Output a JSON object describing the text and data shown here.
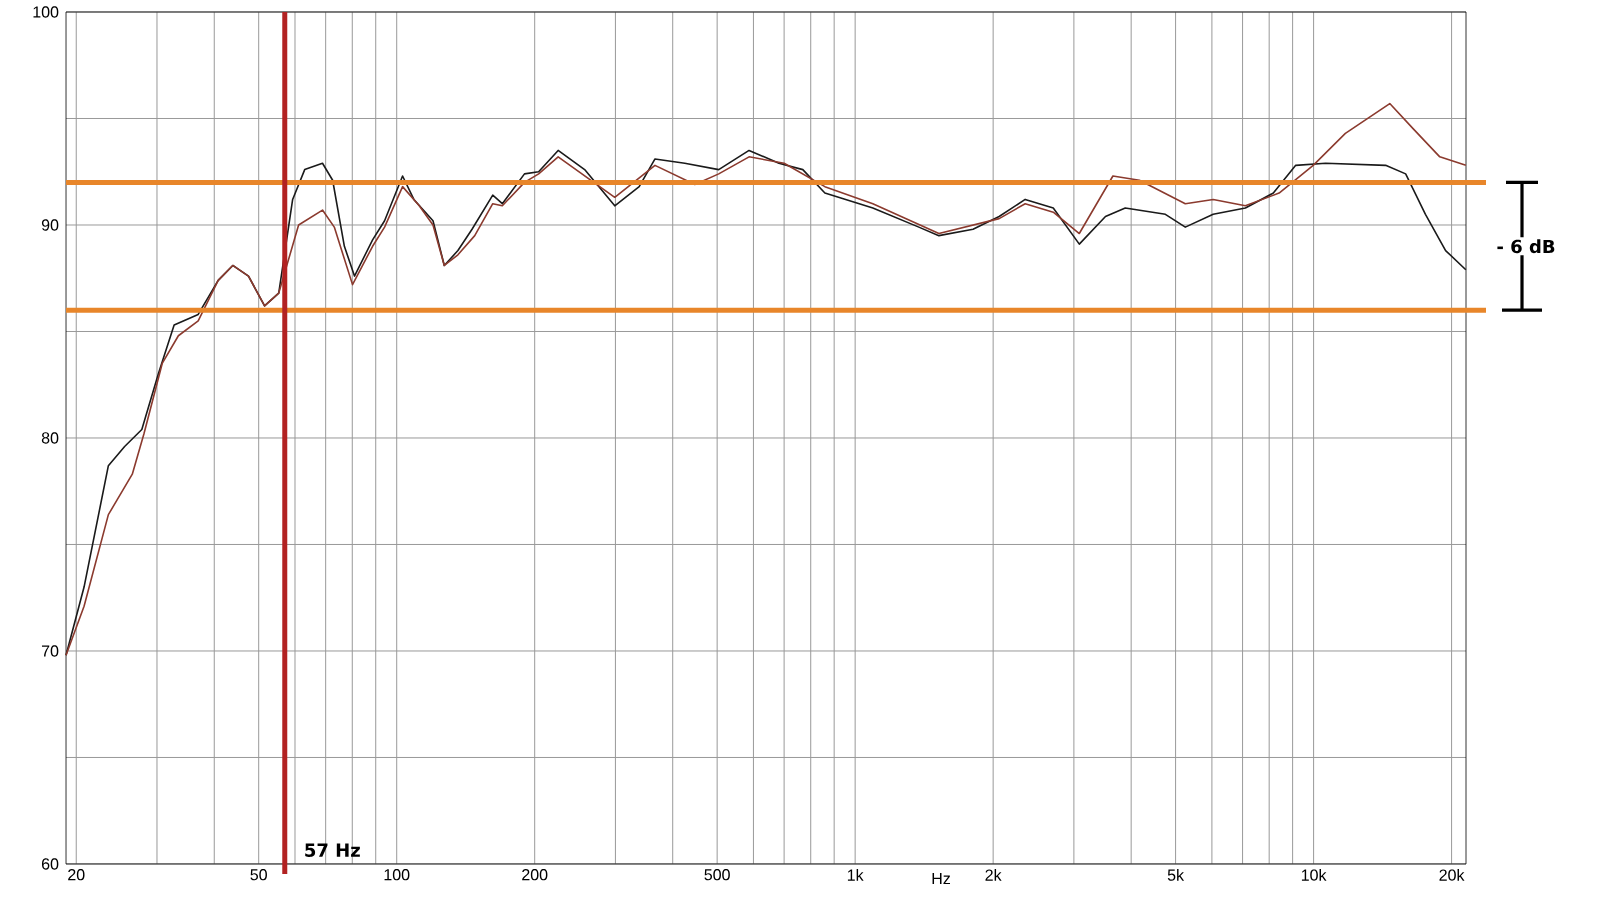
{
  "chart_data": {
    "type": "line",
    "log": "x",
    "grid": true,
    "xlabel": "Hz",
    "xlim": [
      19,
      21500
    ],
    "ylim": [
      60,
      100
    ],
    "xticks": [
      20,
      {
        "value": 30,
        "label": null
      },
      {
        "value": 40,
        "label": null
      },
      50,
      {
        "value": 60,
        "label": null
      },
      {
        "value": 70,
        "label": null
      },
      {
        "value": 80,
        "label": null
      },
      {
        "value": 90,
        "label": null
      },
      100,
      200,
      {
        "value": 300,
        "label": null
      },
      {
        "value": 400,
        "label": null
      },
      500,
      {
        "value": 600,
        "label": null
      },
      {
        "value": 700,
        "label": null
      },
      {
        "value": 800,
        "label": null
      },
      {
        "value": 900,
        "label": null
      },
      {
        "value": 1000,
        "label": "1k"
      },
      {
        "value": 2000,
        "label": "2k"
      },
      {
        "value": 3000,
        "label": null
      },
      {
        "value": 4000,
        "label": null
      },
      {
        "value": 5000,
        "label": "5k"
      },
      {
        "value": 6000,
        "label": null
      },
      {
        "value": 7000,
        "label": null
      },
      {
        "value": 8000,
        "label": null
      },
      {
        "value": 9000,
        "label": null
      },
      {
        "value": 10000,
        "label": "10k"
      },
      {
        "value": 20000,
        "label": "20k"
      }
    ],
    "yticks": [
      60,
      {
        "value": 65,
        "label": null
      },
      70,
      {
        "value": 75,
        "label": null
      },
      80,
      {
        "value": 85,
        "label": null
      },
      90,
      {
        "value": 95,
        "label": null
      },
      100
    ],
    "series": [
      {
        "color": "#1a1a1a",
        "x": [
          19,
          20.8,
          23.5,
          25.5,
          27.8,
          30.2,
          32.7,
          36.9,
          40.8,
          43.9,
          47.5,
          51.5,
          55.3,
          59.3,
          63,
          68.9,
          72.5,
          76.9,
          80.9,
          88.6,
          94.1,
          103,
          109,
          120,
          127,
          136,
          146,
          162,
          170,
          190,
          204,
          225,
          257,
          299,
          338,
          366,
          425,
          504,
          587,
          682,
          769,
          859,
          1093,
          1377,
          1523,
          1808,
          2061,
          2349,
          2705,
          3083,
          3516,
          3883,
          4750,
          5250,
          6040,
          7100,
          8170,
          9140,
          10620,
          14360,
          15880,
          17540,
          19410,
          21480
        ],
        "values": [
          69.8,
          73.0,
          78.7,
          79.6,
          80.4,
          83.0,
          85.3,
          85.8,
          87.4,
          88.1,
          87.6,
          86.2,
          86.8,
          91.2,
          92.6,
          92.9,
          92.1,
          89.0,
          87.6,
          89.3,
          90.2,
          92.3,
          91.2,
          90.2,
          88.1,
          88.8,
          89.8,
          91.4,
          91.0,
          92.4,
          92.5,
          93.5,
          92.6,
          90.9,
          91.8,
          93.1,
          92.9,
          92.6,
          93.5,
          92.9,
          92.6,
          91.5,
          90.8,
          89.9,
          89.5,
          89.8,
          90.4,
          91.2,
          90.8,
          89.1,
          90.4,
          90.8,
          90.5,
          89.9,
          90.5,
          90.8,
          91.5,
          92.8,
          92.9,
          92.8,
          92.4,
          90.5,
          88.8,
          87.9
        ]
      },
      {
        "color": "#8b3a2e",
        "x": [
          19,
          20.8,
          23.5,
          26.5,
          28.1,
          30.8,
          33.4,
          36.9,
          40.8,
          43.9,
          47.5,
          51.5,
          55.3,
          61.1,
          68.9,
          73.1,
          80.1,
          88.6,
          94.1,
          103,
          112,
          120,
          127,
          136,
          148,
          162,
          170,
          190,
          204,
          225,
          299,
          366,
          447,
          504,
          587,
          700,
          859,
          1093,
          1523,
          2061,
          2349,
          2705,
          3083,
          3650,
          4170,
          5250,
          6040,
          7100,
          8410,
          9980,
          11730,
          14660,
          16520,
          18850,
          21480
        ],
        "values": [
          69.8,
          72.1,
          76.4,
          78.3,
          80.2,
          83.5,
          84.8,
          85.5,
          87.4,
          88.1,
          87.6,
          86.2,
          86.8,
          90.0,
          90.7,
          89.9,
          87.2,
          89.0,
          89.9,
          91.8,
          90.9,
          90.0,
          88.1,
          88.6,
          89.5,
          91.0,
          90.9,
          92.0,
          92.4,
          93.2,
          91.3,
          92.8,
          91.9,
          92.4,
          93.2,
          92.9,
          91.8,
          91.0,
          89.6,
          90.3,
          91.0,
          90.6,
          89.6,
          92.3,
          92.1,
          91.0,
          91.2,
          90.9,
          91.5,
          92.8,
          94.3,
          95.7,
          94.5,
          93.2,
          92.8
        ]
      }
    ],
    "ref_lines": [
      {
        "axis": "y",
        "value": 92,
        "color": "#e8862a"
      },
      {
        "axis": "y",
        "value": 86,
        "color": "#e8862a"
      },
      {
        "axis": "x",
        "value": 57,
        "label": "57 Hz",
        "color": "#b22222"
      }
    ],
    "annotations": [
      "- 6 dB"
    ]
  }
}
